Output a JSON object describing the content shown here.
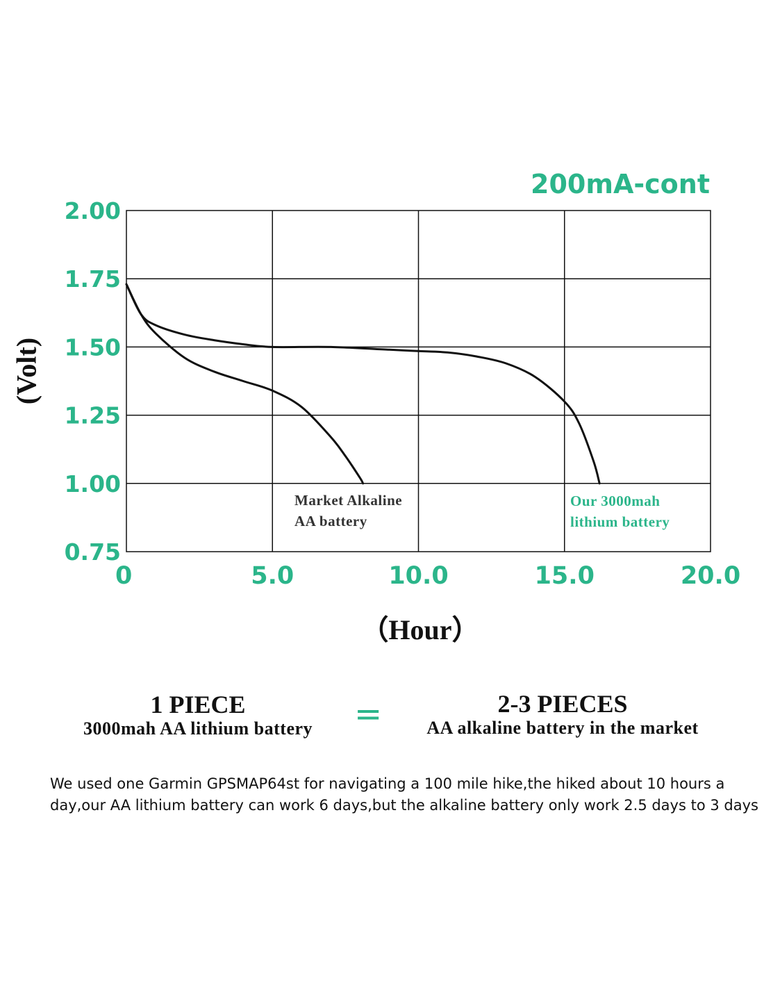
{
  "colors": {
    "accent": "#2bb58a",
    "ink": "#111111"
  },
  "chart_data": {
    "type": "line",
    "condition_label": "200mA-cont",
    "xlabel": "（Hour）",
    "ylabel": "(Volt)",
    "xlim": [
      0,
      20
    ],
    "ylim": [
      0.75,
      2.0
    ],
    "x_ticks": [
      "0",
      "5.0",
      "10.0",
      "15.0",
      "20.0"
    ],
    "y_ticks": [
      "2.00",
      "1.75",
      "1.50",
      "1.25",
      "1.00",
      "0.75"
    ],
    "grid": true,
    "series": [
      {
        "name": "Market Alkaline AA battery",
        "label_lines": [
          "Market Alkaline",
          "AA battery"
        ],
        "label_color": "#333333",
        "x": [
          0,
          0.5,
          1,
          2,
          3,
          4,
          5,
          6,
          7,
          7.5,
          8.0,
          8.1
        ],
        "y": [
          1.73,
          1.62,
          1.55,
          1.46,
          1.41,
          1.375,
          1.34,
          1.28,
          1.17,
          1.1,
          1.02,
          1.0
        ]
      },
      {
        "name": "Our 3000mah lithium battery",
        "label_lines": [
          "Our 3000mah",
          "lithium battery"
        ],
        "label_color": "#2bb58a",
        "x": [
          0,
          0.5,
          1,
          2,
          3,
          4,
          5,
          7,
          9,
          10,
          11,
          12,
          13,
          14,
          15,
          15.5,
          16.0,
          16.2
        ],
        "y": [
          1.73,
          1.62,
          1.58,
          1.545,
          1.525,
          1.51,
          1.5,
          1.5,
          1.49,
          1.485,
          1.48,
          1.465,
          1.44,
          1.39,
          1.3,
          1.22,
          1.08,
          1.0
        ]
      }
    ]
  },
  "equivalence": {
    "left_big": "1 PIECE",
    "left_small": "3000mah AA lithium battery",
    "sign": "=",
    "right_big": "2-3 PIECES",
    "right_small": "AA alkaline battery in the market"
  },
  "note": "We used one Garmin GPSMAP64st for navigating a 100 mile hike,the hiked about 10 hours a day,our AA lithium battery can work 6 days,but the alkaline battery only work 2.5 days to 3 days"
}
